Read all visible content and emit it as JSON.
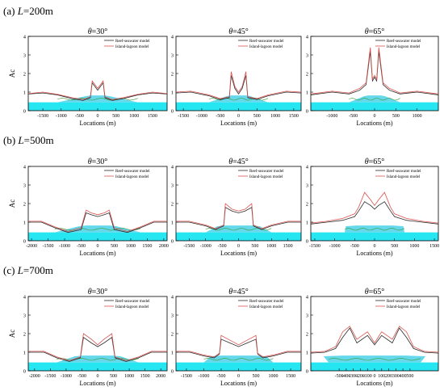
{
  "rows": [
    {
      "prefix": "(a) ",
      "var": "L",
      "eq": "=200m"
    },
    {
      "prefix": "(b) ",
      "var": "L",
      "eq": "=500m"
    },
    {
      "prefix": "(c) ",
      "var": "L",
      "eq": "=700m"
    }
  ],
  "legend": [
    "Reef-seawater model",
    "Island-lagoon model"
  ],
  "colors": {
    "reef": "#2a2a2a",
    "island": "#d9534f",
    "green": "#3a9a3a",
    "water": "#26e6f2",
    "reef_body": "#4ad2e8"
  },
  "chart_data": [
    {
      "type": "line",
      "row": 0,
      "title_var": "θ",
      "title_val": "=30°",
      "xlabel": "Locations (m)",
      "ylabel": "Ac",
      "xlim": [
        -1900,
        1900
      ],
      "ylim": [
        0,
        4
      ],
      "xticks": [
        -1500,
        -1000,
        -500,
        0,
        500,
        1000,
        1500
      ],
      "yticks": [
        0,
        1,
        2,
        3,
        4
      ],
      "lagoon_half": 200,
      "reef_half": 1100,
      "series": [
        {
          "x": [
            -1900,
            -1500,
            -1100,
            -700,
            -400,
            -200,
            -150,
            0,
            150,
            200,
            400,
            700,
            1100,
            1500,
            1900
          ],
          "y": [
            0.9,
            0.95,
            0.85,
            0.65,
            0.55,
            0.7,
            1.5,
            1.1,
            1.5,
            0.7,
            0.55,
            0.65,
            0.85,
            0.95,
            0.9
          ]
        },
        {
          "x": [
            -1900,
            -1500,
            -1100,
            -700,
            -400,
            -200,
            -150,
            0,
            150,
            200,
            400,
            700,
            1100,
            1500,
            1900
          ],
          "y": [
            0.92,
            1.0,
            0.88,
            0.7,
            0.6,
            0.75,
            1.6,
            1.2,
            1.6,
            0.75,
            0.6,
            0.7,
            0.88,
            1.0,
            0.92
          ]
        }
      ]
    },
    {
      "type": "line",
      "row": 0,
      "title_var": "θ",
      "title_val": "=45°",
      "xlabel": "Locations (m)",
      "ylabel": "",
      "xlim": [
        -1700,
        1700
      ],
      "ylim": [
        0,
        4
      ],
      "xticks": [
        -1500,
        -1000,
        -500,
        0,
        500,
        1000,
        1500
      ],
      "yticks": [
        0,
        1,
        2,
        3,
        4
      ],
      "lagoon_half": 200,
      "reef_half": 800,
      "series": [
        {
          "x": [
            -1700,
            -1300,
            -800,
            -500,
            -250,
            -200,
            -100,
            0,
            100,
            200,
            250,
            500,
            800,
            1300,
            1700
          ],
          "y": [
            0.95,
            1.0,
            0.8,
            0.6,
            0.7,
            1.9,
            1.2,
            0.9,
            1.2,
            1.9,
            0.7,
            0.6,
            0.8,
            1.0,
            0.95
          ]
        },
        {
          "x": [
            -1700,
            -1300,
            -800,
            -500,
            -250,
            -200,
            -100,
            0,
            100,
            200,
            250,
            500,
            800,
            1300,
            1700
          ],
          "y": [
            1.0,
            1.05,
            0.85,
            0.65,
            0.75,
            2.1,
            1.3,
            1.0,
            1.3,
            2.1,
            0.75,
            0.65,
            0.85,
            1.05,
            1.0
          ]
        }
      ]
    },
    {
      "type": "line",
      "row": 0,
      "title_var": "θ",
      "title_val": "=65°",
      "xlabel": "Locations (m)",
      "ylabel": "",
      "xlim": [
        -1500,
        1500
      ],
      "ylim": [
        0,
        4
      ],
      "xticks": [
        -1000,
        -500,
        0,
        500,
        1000
      ],
      "yticks": [
        0,
        1,
        2,
        3,
        4
      ],
      "lagoon_half": 150,
      "reef_half": 600,
      "series": [
        {
          "x": [
            -1500,
            -1000,
            -600,
            -350,
            -200,
            -100,
            -50,
            0,
            50,
            100,
            200,
            350,
            600,
            1000,
            1500
          ],
          "y": [
            0.85,
            1.0,
            0.9,
            1.1,
            1.4,
            3.2,
            1.6,
            1.8,
            1.6,
            3.2,
            1.4,
            1.1,
            0.9,
            1.0,
            0.85
          ]
        },
        {
          "x": [
            -1500,
            -1000,
            -600,
            -350,
            -200,
            -100,
            -50,
            0,
            50,
            100,
            200,
            350,
            600,
            1000,
            1500
          ],
          "y": [
            0.9,
            1.05,
            0.95,
            1.2,
            1.5,
            3.4,
            1.7,
            1.9,
            1.7,
            3.4,
            1.5,
            1.2,
            0.95,
            1.05,
            0.9
          ]
        }
      ]
    },
    {
      "type": "line",
      "row": 1,
      "title_var": "θ",
      "title_val": "=30°",
      "xlabel": "Locations (m)",
      "ylabel": "Ac",
      "xlim": [
        -2100,
        2100
      ],
      "ylim": [
        0,
        4
      ],
      "xticks": [
        -2000,
        -1500,
        -1000,
        -500,
        0,
        500,
        1000,
        1500,
        2000
      ],
      "yticks": [
        0,
        1,
        2,
        3,
        4
      ],
      "lagoon_half": 350,
      "reef_half": 1300,
      "series": [
        {
          "x": [
            -2100,
            -1700,
            -1300,
            -900,
            -500,
            -350,
            -200,
            0,
            200,
            350,
            500,
            900,
            1300,
            1700,
            2100
          ],
          "y": [
            1.0,
            1.0,
            0.7,
            0.45,
            0.6,
            1.5,
            1.4,
            1.3,
            1.4,
            1.5,
            0.6,
            0.45,
            0.7,
            1.0,
            1.0
          ]
        },
        {
          "x": [
            -2100,
            -1700,
            -1300,
            -900,
            -500,
            -350,
            -200,
            0,
            200,
            350,
            500,
            900,
            1300,
            1700,
            2100
          ],
          "y": [
            1.05,
            1.05,
            0.75,
            0.5,
            0.7,
            1.65,
            1.5,
            1.4,
            1.5,
            1.65,
            0.7,
            0.5,
            0.75,
            1.05,
            1.05
          ]
        }
      ]
    },
    {
      "type": "line",
      "row": 1,
      "title_var": "θ",
      "title_val": "=45°",
      "xlabel": "Locations (m)",
      "ylabel": "",
      "xlim": [
        -1900,
        1900
      ],
      "ylim": [
        0,
        4
      ],
      "xticks": [
        -1500,
        -1000,
        -500,
        0,
        500,
        1000,
        1500
      ],
      "yticks": [
        0,
        1,
        2,
        3,
        4
      ],
      "lagoon_half": 400,
      "reef_half": 1000,
      "series": [
        {
          "x": [
            -1900,
            -1500,
            -1000,
            -700,
            -450,
            -400,
            -200,
            0,
            200,
            400,
            450,
            700,
            1000,
            1500,
            1900
          ],
          "y": [
            1.0,
            1.0,
            0.8,
            0.6,
            0.8,
            1.8,
            1.6,
            1.5,
            1.6,
            1.8,
            0.8,
            0.6,
            0.8,
            1.0,
            1.0
          ]
        },
        {
          "x": [
            -1900,
            -1500,
            -1000,
            -700,
            -450,
            -400,
            -200,
            0,
            200,
            400,
            450,
            700,
            1000,
            1500,
            1900
          ],
          "y": [
            1.05,
            1.05,
            0.85,
            0.65,
            0.85,
            2.0,
            1.7,
            1.6,
            1.7,
            2.0,
            0.85,
            0.65,
            0.85,
            1.05,
            1.05
          ]
        }
      ]
    },
    {
      "type": "line",
      "row": 1,
      "title_var": "θ",
      "title_val": "=65°",
      "xlabel": "Locations (m)",
      "ylabel": "",
      "xlim": [
        -1600,
        1600
      ],
      "ylim": [
        0,
        4
      ],
      "xticks": [
        -1500,
        -1000,
        -500,
        0,
        500,
        1000,
        1500
      ],
      "yticks": [
        0,
        1,
        2,
        3,
        4
      ],
      "lagoon_half": 450,
      "reef_half": 750,
      "series": [
        {
          "x": [
            -1600,
            -1200,
            -800,
            -500,
            -400,
            -250,
            -100,
            0,
            100,
            250,
            400,
            500,
            800,
            1200,
            1600
          ],
          "y": [
            0.9,
            1.0,
            1.1,
            1.3,
            1.6,
            2.1,
            1.9,
            1.7,
            1.9,
            2.1,
            1.6,
            1.3,
            1.1,
            1.0,
            0.9
          ]
        },
        {
          "x": [
            -1600,
            -1200,
            -800,
            -500,
            -400,
            -250,
            -100,
            0,
            100,
            250,
            400,
            500,
            800,
            1200,
            1600
          ],
          "y": [
            0.95,
            1.05,
            1.2,
            1.45,
            1.8,
            2.6,
            2.2,
            1.9,
            2.2,
            2.6,
            1.8,
            1.45,
            1.2,
            1.05,
            0.95
          ]
        }
      ]
    },
    {
      "type": "line",
      "row": 2,
      "title_var": "θ",
      "title_val": "=30°",
      "xlabel": "Locations (m)",
      "ylabel": "Ac",
      "xlim": [
        -2200,
        2200
      ],
      "ylim": [
        0,
        4
      ],
      "xticks": [
        -2000,
        -1500,
        -1000,
        -500,
        0,
        500,
        1000,
        1500,
        2000
      ],
      "yticks": [
        0,
        1,
        2,
        3,
        4
      ],
      "lagoon_half": 450,
      "reef_half": 1300,
      "series": [
        {
          "x": [
            -2200,
            -1700,
            -1300,
            -900,
            -550,
            -450,
            -200,
            0,
            200,
            450,
            550,
            900,
            1300,
            1700,
            2200
          ],
          "y": [
            1.0,
            1.0,
            0.7,
            0.5,
            0.7,
            1.8,
            1.5,
            1.3,
            1.5,
            1.8,
            0.7,
            0.5,
            0.7,
            1.0,
            1.0
          ]
        },
        {
          "x": [
            -2200,
            -1700,
            -1300,
            -900,
            -550,
            -450,
            -200,
            0,
            200,
            450,
            550,
            900,
            1300,
            1700,
            2200
          ],
          "y": [
            1.05,
            1.05,
            0.75,
            0.55,
            0.75,
            2.0,
            1.7,
            1.4,
            1.7,
            2.0,
            0.75,
            0.55,
            0.75,
            1.05,
            1.05
          ]
        }
      ]
    },
    {
      "type": "line",
      "row": 2,
      "title_var": "θ",
      "title_val": "=45°",
      "xlabel": "Locations (m)",
      "ylabel": "",
      "xlim": [
        -1800,
        1800
      ],
      "ylim": [
        0,
        4
      ],
      "xticks": [
        -1500,
        -1000,
        -500,
        0,
        500,
        1000,
        1500
      ],
      "yticks": [
        0,
        1,
        2,
        3,
        4
      ],
      "lagoon_half": 500,
      "reef_half": 1000,
      "series": [
        {
          "x": [
            -1800,
            -1400,
            -1000,
            -700,
            -550,
            -500,
            -250,
            0,
            250,
            500,
            550,
            700,
            1000,
            1400,
            1800
          ],
          "y": [
            1.0,
            1.0,
            0.8,
            0.7,
            0.9,
            1.7,
            1.5,
            1.3,
            1.5,
            1.7,
            0.9,
            0.7,
            0.8,
            1.0,
            1.0
          ]
        },
        {
          "x": [
            -1800,
            -1400,
            -1000,
            -700,
            -550,
            -500,
            -250,
            0,
            250,
            500,
            550,
            700,
            1000,
            1400,
            1800
          ],
          "y": [
            1.05,
            1.05,
            0.85,
            0.75,
            0.95,
            1.9,
            1.65,
            1.4,
            1.65,
            1.9,
            0.95,
            0.75,
            0.85,
            1.05,
            1.05
          ]
        }
      ]
    },
    {
      "type": "line",
      "row": 2,
      "title_var": "θ",
      "title_val": "=65°",
      "xlabel": "Locations (m)",
      "ylabel": "",
      "xlim": [
        -900,
        900
      ],
      "ylim": [
        0,
        4
      ],
      "xticks": [
        -500,
        -400,
        -300,
        -200,
        -100,
        0,
        100,
        200,
        300,
        400,
        500
      ],
      "yticks": [
        0,
        1,
        2,
        3,
        4
      ],
      "lagoon_half": 450,
      "reef_half": 650,
      "series": [
        {
          "x": [
            -900,
            -700,
            -550,
            -450,
            -350,
            -250,
            -100,
            0,
            100,
            250,
            350,
            450,
            550,
            700,
            900
          ],
          "y": [
            0.95,
            1.0,
            1.2,
            1.8,
            2.3,
            1.5,
            1.9,
            1.4,
            1.9,
            1.5,
            2.3,
            1.8,
            1.2,
            1.0,
            0.95
          ]
        },
        {
          "x": [
            -900,
            -700,
            -550,
            -450,
            -350,
            -250,
            -100,
            0,
            100,
            250,
            350,
            450,
            550,
            700,
            900
          ],
          "y": [
            1.0,
            1.05,
            1.3,
            2.1,
            2.4,
            1.7,
            2.1,
            1.5,
            2.1,
            1.7,
            2.4,
            2.1,
            1.3,
            1.05,
            1.0
          ]
        }
      ]
    }
  ]
}
